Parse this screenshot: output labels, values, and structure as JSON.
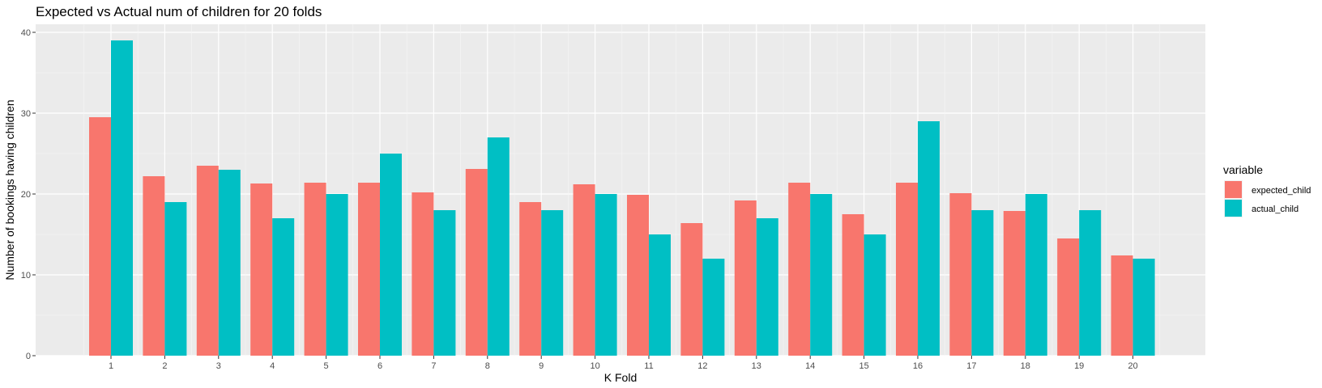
{
  "chart_data": {
    "type": "bar",
    "title": "Expected vs Actual num of children for 20 folds",
    "xlabel": "K Fold",
    "ylabel": "Number of bookings having children",
    "categories": [
      "1",
      "2",
      "3",
      "4",
      "5",
      "6",
      "7",
      "8",
      "9",
      "10",
      "11",
      "12",
      "13",
      "14",
      "15",
      "16",
      "17",
      "18",
      "19",
      "20"
    ],
    "ylim": [
      0,
      41
    ],
    "yticks": [
      0,
      10,
      20,
      30,
      40
    ],
    "grid": true,
    "legend": {
      "title": "variable",
      "placement": "right"
    },
    "series": [
      {
        "name": "expected_child",
        "color": "#F8766D",
        "values": [
          29.5,
          22.2,
          23.5,
          21.3,
          21.4,
          21.4,
          20.2,
          23.1,
          19.0,
          21.2,
          19.9,
          16.4,
          19.2,
          21.4,
          17.5,
          21.4,
          20.1,
          17.9,
          14.5,
          12.4
        ]
      },
      {
        "name": "actual_child",
        "color": "#00BFC4",
        "values": [
          39,
          19,
          23,
          17,
          20,
          25,
          18,
          27,
          18,
          20,
          15,
          12,
          17,
          20,
          15,
          29,
          18,
          20,
          18,
          12
        ]
      }
    ]
  }
}
